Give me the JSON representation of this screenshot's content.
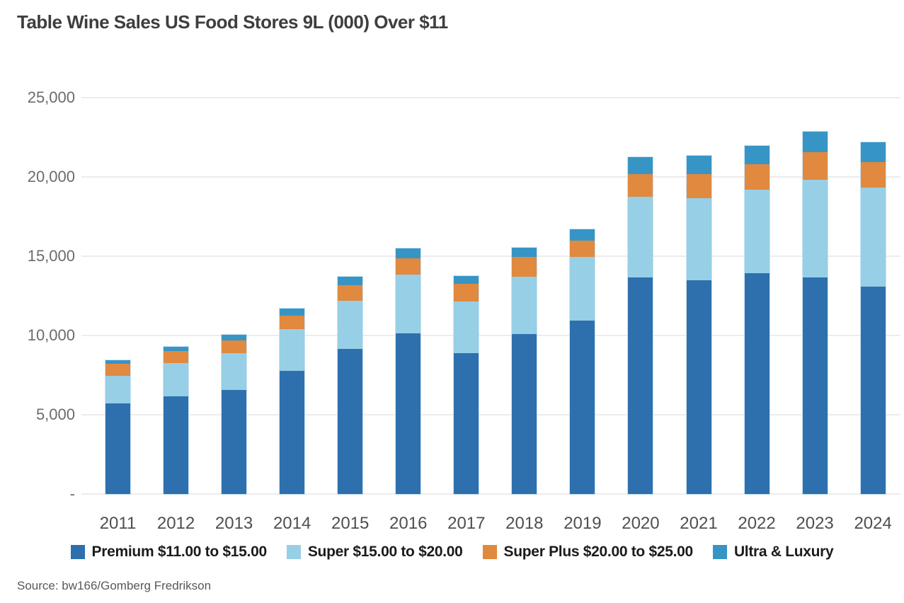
{
  "title": "Table Wine Sales US Food Stores 9L (000) Over $11",
  "source": "Source: bw166/Gomberg Fredrikson",
  "colors": {
    "premium": "#2d70ad",
    "super": "#97cfe6",
    "super_plus": "#e0893f",
    "ultra": "#3795c5",
    "gridline": "#ececec"
  },
  "chart_data": {
    "type": "bar",
    "stacked": true,
    "title": "Table Wine Sales US Food Stores 9L (000) Over $11",
    "xlabel": "",
    "ylabel": "",
    "grid": true,
    "legend_position": "bottom",
    "ylim": [
      0,
      25000
    ],
    "ytick_interval": 5000,
    "ytick_labels": [
      "-",
      "5,000",
      "10,000",
      "15,000",
      "20,000",
      "25,000"
    ],
    "categories": [
      "2011",
      "2012",
      "2013",
      "2014",
      "2015",
      "2016",
      "2017",
      "2018",
      "2019",
      "2020",
      "2021",
      "2022",
      "2023",
      "2024"
    ],
    "series": [
      {
        "name": "Premium $11.00 to $15.00",
        "color_key": "premium",
        "values": [
          5700,
          6150,
          6550,
          7750,
          9150,
          10150,
          8900,
          10100,
          10950,
          13650,
          13500,
          13950,
          13650,
          13100
        ]
      },
      {
        "name": "Super $15.00 to $20.00",
        "color_key": "super",
        "values": [
          1750,
          2100,
          2350,
          2650,
          3050,
          3700,
          3250,
          3600,
          4000,
          5100,
          5150,
          5250,
          6150,
          6250
        ]
      },
      {
        "name": "Super Plus $20.00 to $25.00",
        "color_key": "super_plus",
        "values": [
          750,
          750,
          800,
          850,
          950,
          1000,
          1100,
          1250,
          1050,
          1450,
          1550,
          1600,
          1750,
          1600
        ]
      },
      {
        "name": "Ultra & Luxury",
        "color_key": "ultra",
        "values": [
          250,
          300,
          350,
          450,
          550,
          650,
          500,
          600,
          700,
          1050,
          1150,
          1150,
          1300,
          1250
        ]
      }
    ],
    "totals": [
      8450,
      9300,
      10050,
      11700,
      13700,
      15500,
      13750,
      15550,
      16700,
      21250,
      21350,
      21950,
      22850,
      22200
    ]
  }
}
